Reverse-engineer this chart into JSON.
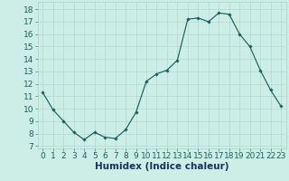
{
  "x": [
    0,
    1,
    2,
    3,
    4,
    5,
    6,
    7,
    8,
    9,
    10,
    11,
    12,
    13,
    14,
    15,
    16,
    17,
    18,
    19,
    20,
    21,
    22,
    23
  ],
  "y": [
    11.3,
    9.9,
    9.0,
    8.1,
    7.5,
    8.1,
    7.7,
    7.6,
    8.3,
    9.7,
    12.2,
    12.8,
    13.1,
    13.9,
    17.2,
    17.3,
    17.0,
    17.7,
    17.6,
    16.0,
    15.0,
    13.1,
    11.5,
    10.2
  ],
  "line_color": "#1a6060",
  "marker": "D",
  "marker_size": 1.8,
  "bg_color": "#cceee6",
  "grid_color": "#aad4ca",
  "xlabel": "Humidex (Indice chaleur)",
  "ylabel_ticks": [
    7,
    8,
    9,
    10,
    11,
    12,
    13,
    14,
    15,
    16,
    17,
    18
  ],
  "ylim": [
    6.8,
    18.6
  ],
  "xlim": [
    -0.5,
    23.5
  ],
  "xtick_labels": [
    "0",
    "1",
    "2",
    "3",
    "4",
    "5",
    "6",
    "7",
    "8",
    "9",
    "10",
    "11",
    "12",
    "13",
    "14",
    "15",
    "16",
    "17",
    "18",
    "19",
    "20",
    "21",
    "22",
    "23"
  ],
  "font_size_xlabel": 7.5,
  "font_size_ticks": 6.5,
  "tick_color": "#1a6060",
  "xlabel_color": "#1a3060"
}
